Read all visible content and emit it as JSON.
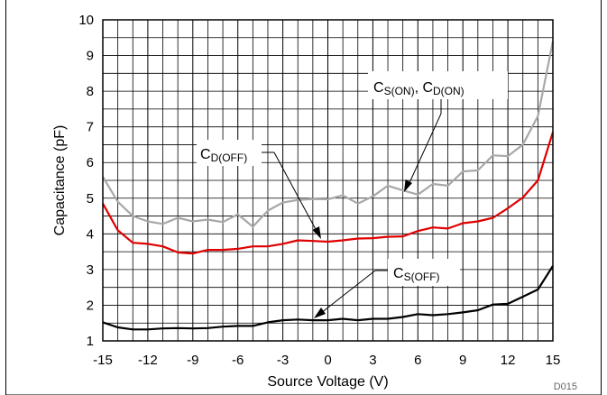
{
  "chart_data": {
    "type": "line",
    "title": "",
    "xlabel": "Source Voltage (V)",
    "ylabel": "Capacitance (pF)",
    "xlim": [
      -15,
      15
    ],
    "ylim": [
      1,
      10
    ],
    "x_ticks": [
      -15,
      -12,
      -9,
      -6,
      -3,
      0,
      3,
      6,
      9,
      12,
      15
    ],
    "y_ticks": [
      1,
      2,
      3,
      4,
      5,
      6,
      7,
      8,
      9,
      10
    ],
    "x_tick_labels": [
      "-15",
      "-12",
      "-9",
      "-6",
      "-3",
      "0",
      "3",
      "6",
      "9",
      "12",
      "15"
    ],
    "y_tick_labels": [
      "1",
      "2",
      "3",
      "4",
      "5",
      "6",
      "7",
      "8",
      "9",
      "10"
    ],
    "grid": true,
    "x": [
      -15,
      -14,
      -13,
      -12,
      -11,
      -10,
      -9,
      -8,
      -7,
      -6,
      -5,
      -4,
      -3,
      -2,
      -1,
      0,
      1,
      2,
      3,
      4,
      5,
      6,
      7,
      8,
      9,
      10,
      11,
      12,
      13,
      14,
      15
    ],
    "series": [
      {
        "name": "C_S(ON), C_D(ON)",
        "color": "#a8a8a8",
        "values": [
          5.6,
          4.9,
          4.5,
          4.35,
          4.28,
          4.45,
          4.35,
          4.4,
          4.33,
          4.55,
          4.2,
          4.65,
          4.88,
          4.95,
          4.98,
          4.97,
          5.08,
          4.85,
          5.05,
          5.35,
          5.22,
          5.1,
          5.4,
          5.35,
          5.75,
          5.78,
          6.2,
          6.18,
          6.5,
          7.3,
          9.4
        ]
      },
      {
        "name": "C_D(OFF)",
        "color": "#e00000",
        "values": [
          4.85,
          4.1,
          3.75,
          3.72,
          3.65,
          3.48,
          3.45,
          3.55,
          3.55,
          3.58,
          3.65,
          3.65,
          3.72,
          3.82,
          3.8,
          3.78,
          3.82,
          3.87,
          3.88,
          3.92,
          3.93,
          4.08,
          4.18,
          4.15,
          4.3,
          4.35,
          4.45,
          4.72,
          5.02,
          5.5,
          6.85
        ]
      },
      {
        "name": "C_S(OFF)",
        "color": "#000000",
        "values": [
          1.52,
          1.38,
          1.32,
          1.32,
          1.35,
          1.36,
          1.35,
          1.36,
          1.4,
          1.42,
          1.42,
          1.52,
          1.58,
          1.6,
          1.58,
          1.58,
          1.62,
          1.58,
          1.62,
          1.62,
          1.67,
          1.75,
          1.72,
          1.75,
          1.8,
          1.86,
          2.02,
          2.04,
          2.24,
          2.44,
          3.1
        ]
      }
    ],
    "annotations": [
      {
        "main": "C",
        "sub": "S(ON)",
        "sep": ", ",
        "main2": "C",
        "sub2": "D(ON)"
      },
      {
        "main": "C",
        "sub": "D(OFF)"
      },
      {
        "main": "C",
        "sub": "S(OFF)"
      }
    ],
    "corner_code": "D015"
  }
}
